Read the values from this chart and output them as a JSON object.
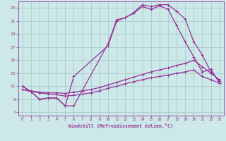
{
  "xlabel": "Windchill (Refroidissement éolien,°C)",
  "bg_color": "#cce8e8",
  "grid_color": "#aacccc",
  "line_color": "#993399",
  "spine_color": "#993399",
  "xlim": [
    -0.5,
    23.5
  ],
  "ylim": [
    6.5,
    24.0
  ],
  "xticks": [
    0,
    1,
    2,
    3,
    4,
    5,
    6,
    7,
    8,
    9,
    10,
    11,
    12,
    13,
    14,
    15,
    16,
    17,
    18,
    19,
    20,
    21,
    22,
    23
  ],
  "yticks": [
    7,
    9,
    11,
    13,
    15,
    17,
    19,
    21,
    23
  ],
  "curve1_x": [
    0,
    1,
    2,
    3,
    4,
    5,
    6,
    10,
    11,
    12,
    13,
    14,
    15,
    16,
    17,
    18,
    19,
    20,
    21,
    22,
    23
  ],
  "curve1_y": [
    11.0,
    10.2,
    9.0,
    9.2,
    9.2,
    8.0,
    8.0,
    17.5,
    21.2,
    21.5,
    22.3,
    23.5,
    23.2,
    23.5,
    23.5,
    22.5,
    21.3,
    17.8,
    15.8,
    13.2,
    11.8
  ],
  "curve2_x": [
    0,
    1,
    2,
    3,
    4,
    5,
    6,
    10,
    11,
    12,
    13,
    14,
    15,
    16,
    17,
    18,
    19,
    20,
    21,
    22,
    23
  ],
  "curve2_y": [
    11.0,
    10.2,
    9.0,
    9.2,
    9.2,
    8.0,
    12.5,
    17.2,
    21.0,
    21.5,
    22.2,
    23.2,
    22.8,
    23.3,
    22.8,
    20.3,
    17.8,
    15.5,
    13.2,
    13.6,
    11.5
  ],
  "curve3_x": [
    0,
    1,
    2,
    3,
    4,
    5,
    6,
    7,
    8,
    9,
    10,
    11,
    12,
    13,
    14,
    15,
    16,
    17,
    18,
    19,
    20,
    21,
    22,
    23
  ],
  "curve3_y": [
    10.5,
    10.3,
    10.1,
    10.0,
    10.0,
    9.9,
    10.1,
    10.3,
    10.5,
    10.8,
    11.2,
    11.6,
    12.0,
    12.4,
    12.8,
    13.2,
    13.5,
    13.8,
    14.2,
    14.5,
    15.0,
    14.0,
    13.0,
    12.0
  ],
  "curve4_x": [
    0,
    1,
    2,
    3,
    4,
    5,
    6,
    7,
    8,
    9,
    10,
    11,
    12,
    13,
    14,
    15,
    16,
    17,
    18,
    19,
    20,
    21,
    22,
    23
  ],
  "curve4_y": [
    10.5,
    10.2,
    10.0,
    9.8,
    9.7,
    9.5,
    9.6,
    9.8,
    10.0,
    10.3,
    10.7,
    11.0,
    11.4,
    11.7,
    12.0,
    12.3,
    12.5,
    12.7,
    13.0,
    13.2,
    13.5,
    12.5,
    12.0,
    11.5
  ]
}
